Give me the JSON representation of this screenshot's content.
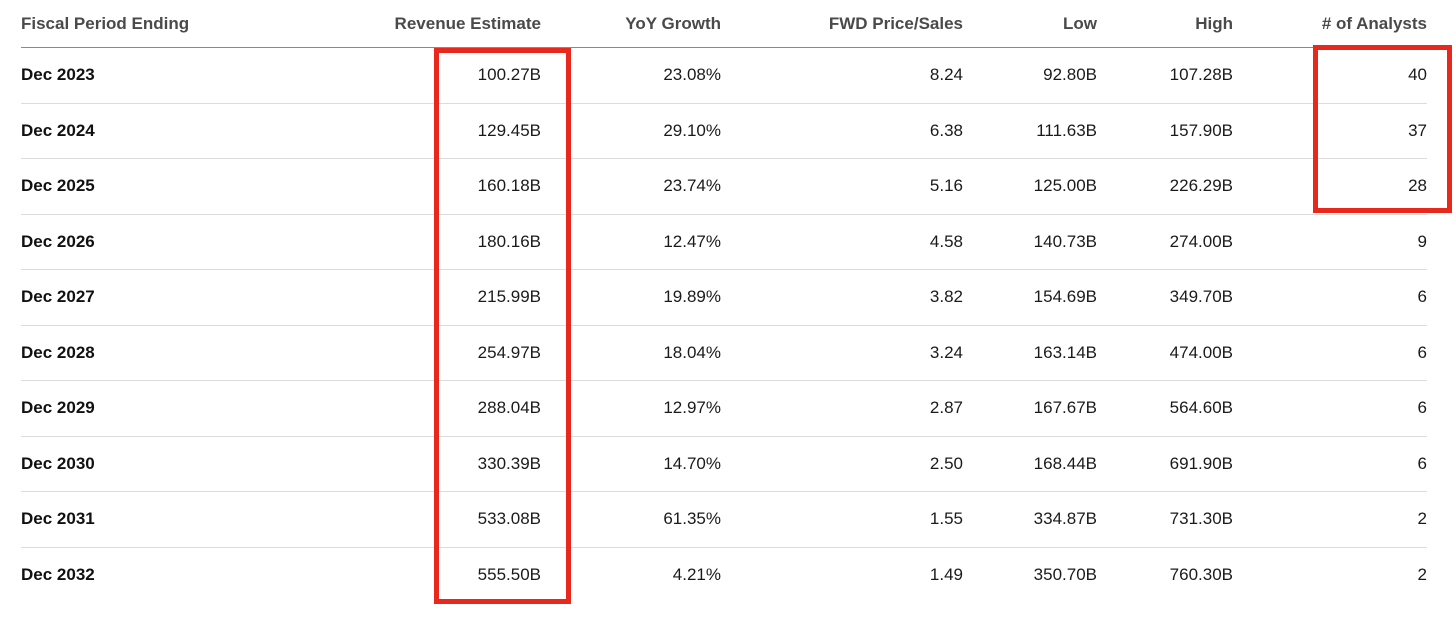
{
  "columns": [
    "Fiscal Period Ending",
    "Revenue Estimate",
    "YoY Growth",
    "FWD Price/Sales",
    "Low",
    "High",
    "# of Analysts"
  ],
  "rows": [
    [
      "Dec 2023",
      "100.27B",
      "23.08%",
      "8.24",
      "92.80B",
      "107.28B",
      "40"
    ],
    [
      "Dec 2024",
      "129.45B",
      "29.10%",
      "6.38",
      "111.63B",
      "157.90B",
      "37"
    ],
    [
      "Dec 2025",
      "160.18B",
      "23.74%",
      "5.16",
      "125.00B",
      "226.29B",
      "28"
    ],
    [
      "Dec 2026",
      "180.16B",
      "12.47%",
      "4.58",
      "140.73B",
      "274.00B",
      "9"
    ],
    [
      "Dec 2027",
      "215.99B",
      "19.89%",
      "3.82",
      "154.69B",
      "349.70B",
      "6"
    ],
    [
      "Dec 2028",
      "254.97B",
      "18.04%",
      "3.24",
      "163.14B",
      "474.00B",
      "6"
    ],
    [
      "Dec 2029",
      "288.04B",
      "12.97%",
      "2.87",
      "167.67B",
      "564.60B",
      "6"
    ],
    [
      "Dec 2030",
      "330.39B",
      "14.70%",
      "2.50",
      "168.44B",
      "691.90B",
      "6"
    ],
    [
      "Dec 2031",
      "533.08B",
      "61.35%",
      "1.55",
      "334.87B",
      "731.30B",
      "2"
    ],
    [
      "Dec 2032",
      "555.50B",
      "4.21%",
      "1.49",
      "350.70B",
      "760.30B",
      "2"
    ]
  ],
  "annotations": {
    "highlight_color": "#e8281c",
    "highlighted_columns": [
      "Revenue Estimate"
    ],
    "highlighted_cells": {
      "column": "# of Analysts",
      "rows": [
        "Dec 2023",
        "Dec 2024",
        "Dec 2025"
      ]
    }
  }
}
